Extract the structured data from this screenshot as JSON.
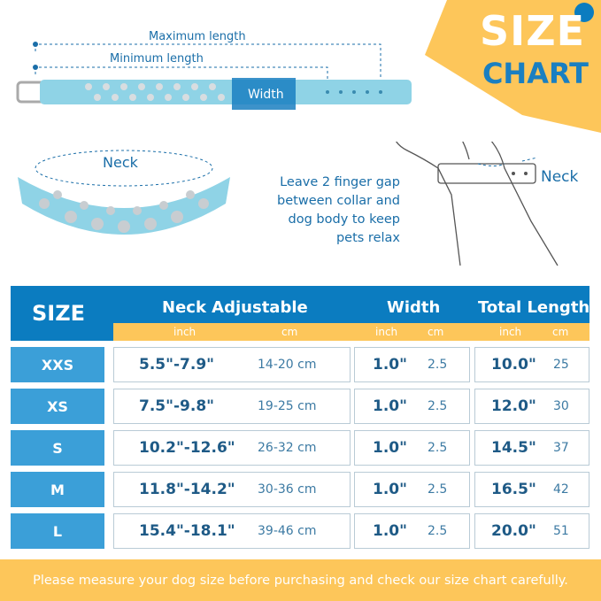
{
  "header": {
    "title_line1": "SIZE",
    "title_line2": "CHART"
  },
  "diagram": {
    "max_length": "Maximum length",
    "min_length": "Minimum length",
    "width": "Width",
    "neck_left": "Neck",
    "neck_right": "Neck",
    "note": "Leave 2 finger gap between collar and dog body to keep pets relax"
  },
  "table": {
    "headers": {
      "size": "SIZE",
      "neck": "Neck Adjustable",
      "width": "Width",
      "total": "Total Length"
    },
    "units": {
      "inch": "inch",
      "cm": "cm"
    },
    "rows": [
      {
        "size": "XXS",
        "neck_in": "5.5\"-7.9\"",
        "neck_cm": "14-20 cm",
        "width_in": "1.0\"",
        "width_cm": "2.5",
        "total_in": "10.0\"",
        "total_cm": "25"
      },
      {
        "size": "XS",
        "neck_in": "7.5\"-9.8\"",
        "neck_cm": "19-25 cm",
        "width_in": "1.0\"",
        "width_cm": "2.5",
        "total_in": "12.0\"",
        "total_cm": "30"
      },
      {
        "size": "S",
        "neck_in": "10.2\"-12.6\"",
        "neck_cm": "26-32 cm",
        "width_in": "1.0\"",
        "width_cm": "2.5",
        "total_in": "14.5\"",
        "total_cm": "37"
      },
      {
        "size": "M",
        "neck_in": "11.8\"-14.2\"",
        "neck_cm": "30-36 cm",
        "width_in": "1.0\"",
        "width_cm": "2.5",
        "total_in": "16.5\"",
        "total_cm": "42"
      },
      {
        "size": "L",
        "neck_in": "15.4\"-18.1\"",
        "neck_cm": "39-46 cm",
        "width_in": "1.0\"",
        "width_cm": "2.5",
        "total_in": "20.0\"",
        "total_cm": "51"
      }
    ]
  },
  "footer": {
    "text": "Please measure your dog size before purchasing and check our size chart carefully."
  },
  "colors": {
    "blue": "#0b7cc0",
    "light_blue": "#3b9fd8",
    "yellow": "#fdc65a",
    "collar": "#8fd3e6"
  }
}
